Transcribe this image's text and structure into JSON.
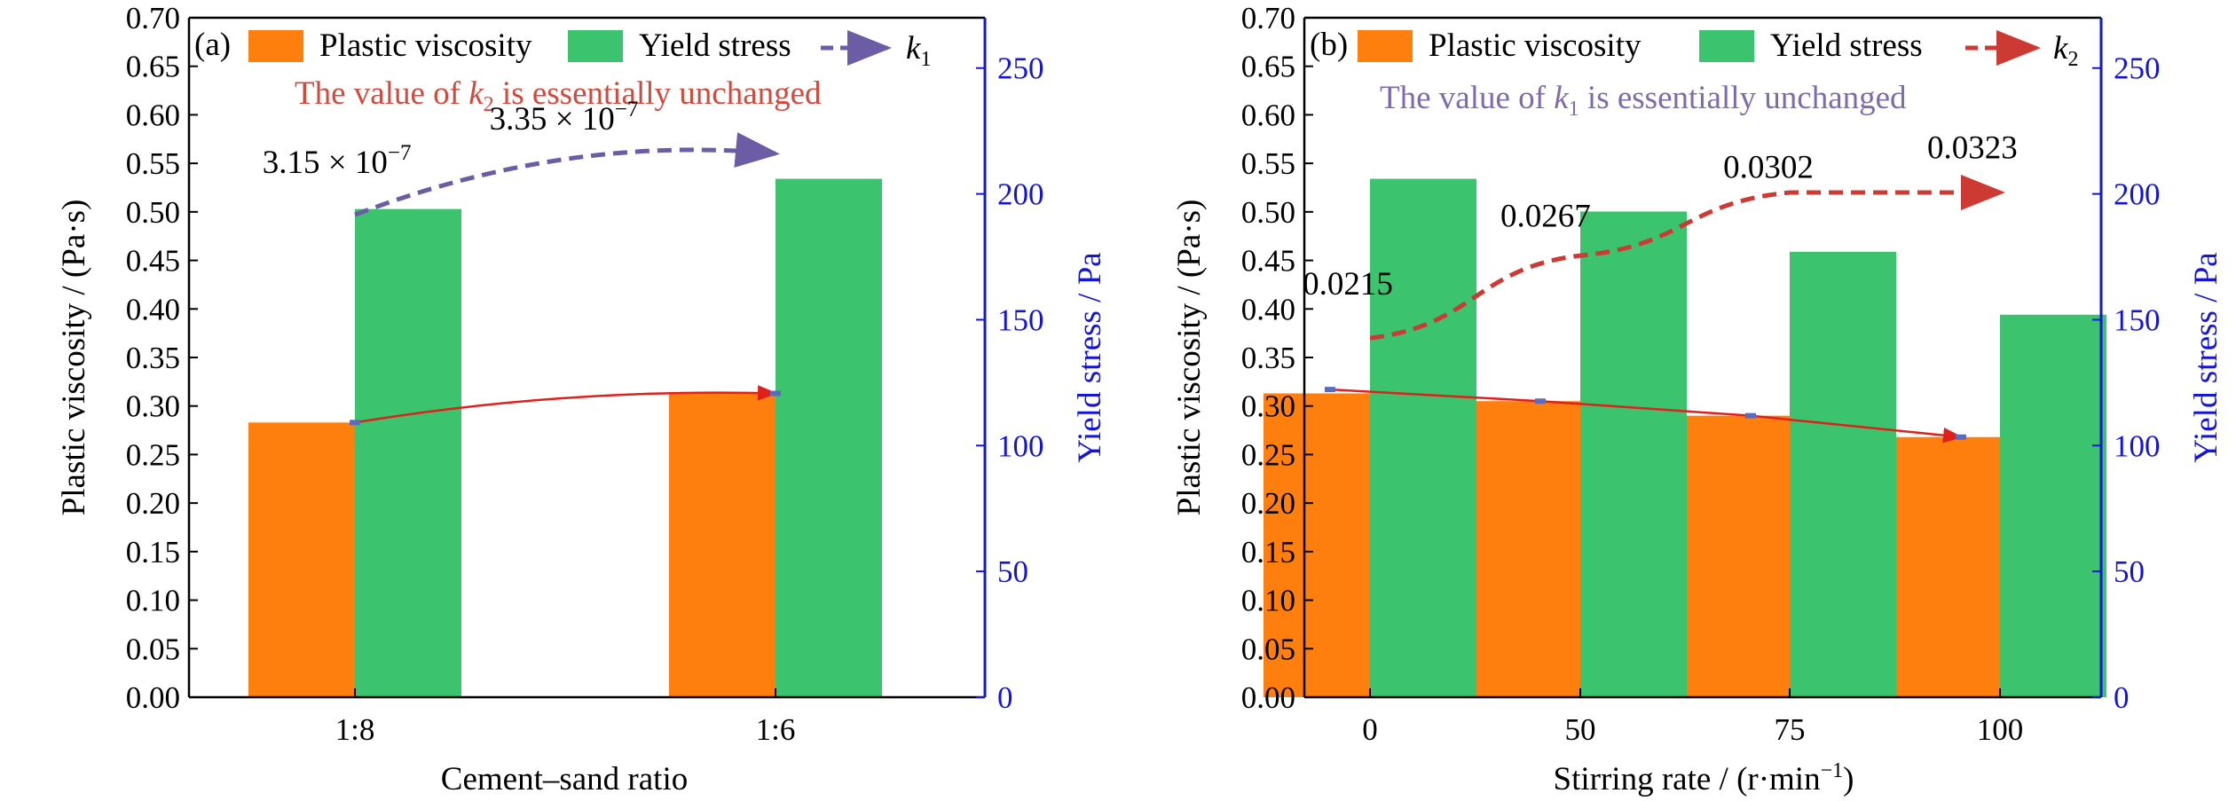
{
  "chart_data": [
    {
      "panel_label": "(a)",
      "type": "bar",
      "categories": [
        "1:8",
        "1:6"
      ],
      "xlabel": "Cement–sand ratio",
      "ylabel_left": "Plastic viscosity / (Pa·s)",
      "ylabel_right": "Yield stress / Pa",
      "ylim_left": [
        0,
        0.7
      ],
      "ylim_right": [
        0,
        270
      ],
      "yticks_left": [
        "0.00",
        "0.05",
        "0.10",
        "0.15",
        "0.20",
        "0.25",
        "0.30",
        "0.35",
        "0.40",
        "0.45",
        "0.50",
        "0.55",
        "0.60",
        "0.65",
        "0.70"
      ],
      "yticks_right": [
        "0",
        "50",
        "100",
        "150",
        "200",
        "250"
      ],
      "series": [
        {
          "name": "Plastic viscosity",
          "axis": "left",
          "values": [
            0.283,
            0.313
          ],
          "color": "#FF7F0E"
        },
        {
          "name": "Yield stress",
          "axis": "right",
          "values": [
            194,
            206
          ],
          "color": "#3CC36E"
        }
      ],
      "trend_arrows": [
        {
          "name": "k₁",
          "legend_main": "k",
          "legend_sub": "1",
          "axis": "left",
          "from": [
            0,
            0.497
          ],
          "to": [
            1,
            0.56
          ],
          "style": "dashed",
          "color": "#6B5CA5",
          "in_legend": true
        },
        {
          "name": "",
          "axis": "left",
          "from": [
            0,
            0.283
          ],
          "to": [
            1,
            0.313
          ],
          "style": "solid",
          "color": "#E0201B",
          "in_legend": false
        }
      ],
      "annotations": [
        {
          "kind": "sci",
          "mantissa": "3.15 × 10",
          "exponent": "−7",
          "at": [
            -0.22,
            0.54
          ]
        },
        {
          "kind": "sci",
          "mantissa": "3.35 × 10",
          "exponent": "−7",
          "at": [
            0.32,
            0.585
          ]
        }
      ],
      "note": {
        "before": "The value of ",
        "k": "k",
        "sub": "2",
        "after": " is essentially unchanged",
        "color": "#D14A3C"
      }
    },
    {
      "panel_label": "(b)",
      "type": "bar",
      "categories": [
        "0",
        "50",
        "75",
        "100"
      ],
      "xlabel": "Stirring rate / (r·min",
      "xlabel_sup": "−1",
      "xlabel_end": ")",
      "ylabel_left": "Plastic viscosity / (Pa·s)",
      "ylabel_right": "Yield stress / Pa",
      "ylim_left": [
        0,
        0.7
      ],
      "ylim_right": [
        0,
        270
      ],
      "yticks_left": [
        "0.00",
        "0.05",
        "0.10",
        "0.15",
        "0.20",
        "0.25",
        "0.30",
        "0.35",
        "0.40",
        "0.45",
        "0.50",
        "0.55",
        "0.60",
        "0.65",
        "0.70"
      ],
      "yticks_right": [
        "0",
        "50",
        "100",
        "150",
        "200",
        "250"
      ],
      "series": [
        {
          "name": "Plastic viscosity",
          "axis": "left",
          "values": [
            0.313,
            0.305,
            0.29,
            0.268
          ],
          "color": "#FF7F0E"
        },
        {
          "name": "Yield stress",
          "axis": "right",
          "values": [
            206,
            193,
            177,
            152
          ],
          "color": "#3CC36E"
        }
      ],
      "trend_arrows": [
        {
          "name": "k₂",
          "legend_main": "k",
          "legend_sub": "2",
          "axis": "left",
          "points": [
            [
              0,
              0.37
            ],
            [
              1,
              0.455
            ],
            [
              2,
              0.52
            ],
            [
              3,
              0.52
            ]
          ],
          "style": "dashed",
          "color": "#CC3A33",
          "in_legend": true
        },
        {
          "name": "",
          "axis": "left",
          "points": [
            [
              -0.19,
              0.317
            ],
            [
              0.81,
              0.305
            ],
            [
              1.81,
              0.29
            ],
            [
              2.81,
              0.268
            ]
          ],
          "style": "solid",
          "color": "#E0201B",
          "in_legend": false
        }
      ],
      "annotations": [
        {
          "kind": "text",
          "text": "0.0215",
          "at": [
            -0.32,
            0.415
          ]
        },
        {
          "kind": "text",
          "text": "0.0267",
          "at": [
            0.62,
            0.485
          ]
        },
        {
          "kind": "text",
          "text": "0.0302",
          "at": [
            1.68,
            0.535
          ]
        },
        {
          "kind": "text",
          "text": "0.0323",
          "at": [
            2.65,
            0.555
          ]
        }
      ],
      "note": {
        "before": "The value of ",
        "k": "k",
        "sub": "1",
        "after": " is essentially unchanged",
        "color": "#7D6BAE"
      }
    }
  ]
}
